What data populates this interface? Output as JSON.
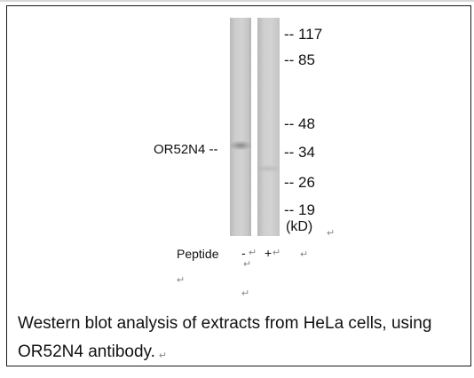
{
  "blot": {
    "protein_label": "OR52N4 --",
    "markers": [
      {
        "label": "-- 117",
        "kd": 117
      },
      {
        "label": "-- 85",
        "kd": 85
      },
      {
        "label": "-- 48",
        "kd": 48
      },
      {
        "label": "-- 34",
        "kd": 34
      },
      {
        "label": "-- 26",
        "kd": 26
      },
      {
        "label": "-- 19",
        "kd": 19
      }
    ],
    "unit_label": "(kD)",
    "peptide_label": "Peptide",
    "lane_signs": [
      "-",
      "+"
    ]
  },
  "caption": {
    "text": "Western blot analysis of extracts from HeLa cells, using OR52N4 antibody."
  },
  "icons": [
    "paragraph-mark-icon"
  ]
}
